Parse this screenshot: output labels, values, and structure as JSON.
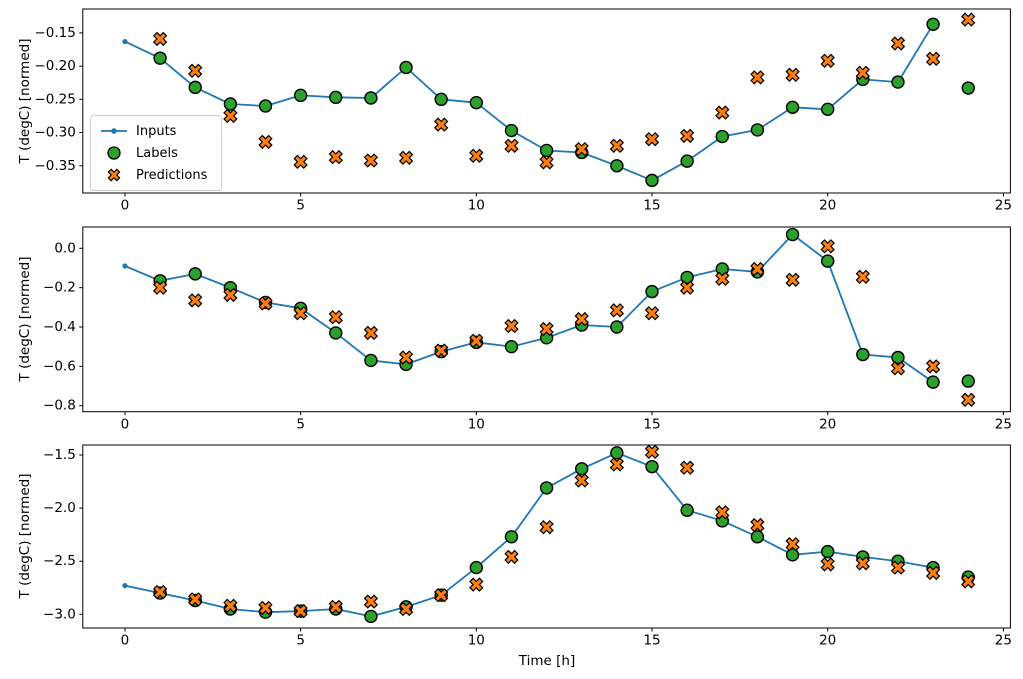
{
  "figure": {
    "background": "#ffffff"
  },
  "xlabel": "Time [h]",
  "legend": {
    "items": [
      "Inputs",
      "Labels",
      "Predictions"
    ],
    "position": "center-left-of-first-subplot"
  },
  "colors": {
    "inputs": "#1f77b4",
    "labels": "#2ca02c",
    "predictions": "#ff7f0e",
    "marker_edge": "#000000",
    "axes": "#000000",
    "legend_border": "#cccccc"
  },
  "chart_data": [
    {
      "type": "line+scatter",
      "ylabel": "T (degC) [normed]",
      "xlim": [
        -1.2,
        25.2
      ],
      "ylim": [
        -0.391,
        -0.114
      ],
      "xtick_values": [
        0,
        5,
        10,
        15,
        20,
        25
      ],
      "xtick_labels": [
        "0",
        "5",
        "10",
        "15",
        "20",
        "25"
      ],
      "ytick_values": [
        -0.15,
        -0.2,
        -0.25,
        -0.3,
        -0.35
      ],
      "ytick_labels": [
        "−0.15",
        "−0.20",
        "−0.25",
        "−0.30",
        "−0.35"
      ],
      "series": [
        {
          "name": "Inputs",
          "kind": "line-with-dots",
          "color": "#1f77b4",
          "x": [
            0,
            1,
            2,
            3,
            4,
            5,
            6,
            7,
            8,
            9,
            10,
            11,
            12,
            13,
            14,
            15,
            16,
            17,
            18,
            19,
            20,
            21,
            22,
            23
          ],
          "y": [
            -0.163,
            -0.188,
            -0.232,
            -0.257,
            -0.26,
            -0.244,
            -0.247,
            -0.248,
            -0.202,
            -0.25,
            -0.255,
            -0.297,
            -0.327,
            -0.33,
            -0.35,
            -0.372,
            -0.343,
            -0.306,
            -0.296,
            -0.262,
            -0.265,
            -0.22,
            -0.224,
            -0.137
          ]
        },
        {
          "name": "Labels",
          "kind": "scatter-circle",
          "color": "#2ca02c",
          "edge": "#000000",
          "x": [
            1,
            2,
            3,
            4,
            5,
            6,
            7,
            8,
            9,
            10,
            11,
            12,
            13,
            14,
            15,
            16,
            17,
            18,
            19,
            20,
            21,
            22,
            23,
            24
          ],
          "y": [
            -0.188,
            -0.232,
            -0.257,
            -0.26,
            -0.244,
            -0.247,
            -0.248,
            -0.202,
            -0.25,
            -0.255,
            -0.297,
            -0.327,
            -0.33,
            -0.35,
            -0.372,
            -0.343,
            -0.306,
            -0.296,
            -0.262,
            -0.265,
            -0.22,
            -0.224,
            -0.137,
            -0.233
          ]
        },
        {
          "name": "Predictions",
          "kind": "scatter-x",
          "color": "#ff7f0e",
          "edge": "#000000",
          "x": [
            1,
            2,
            3,
            4,
            5,
            6,
            7,
            8,
            9,
            10,
            11,
            12,
            13,
            14,
            15,
            16,
            17,
            18,
            19,
            20,
            21,
            22,
            23,
            24
          ],
          "y": [
            -0.159,
            -0.207,
            -0.275,
            -0.314,
            -0.344,
            -0.337,
            -0.342,
            -0.338,
            -0.288,
            -0.335,
            -0.32,
            -0.345,
            -0.325,
            -0.32,
            -0.31,
            -0.305,
            -0.27,
            -0.217,
            -0.213,
            -0.192,
            -0.21,
            -0.166,
            -0.189,
            -0.13
          ]
        }
      ]
    },
    {
      "type": "line+scatter",
      "ylabel": "T (degC) [normed]",
      "xlim": [
        -1.2,
        25.2
      ],
      "ylim": [
        -0.8305,
        0.1083
      ],
      "xtick_values": [
        0,
        5,
        10,
        15,
        20,
        25
      ],
      "xtick_labels": [
        "0",
        "5",
        "10",
        "15",
        "20",
        "25"
      ],
      "ytick_values": [
        0.0,
        -0.2,
        -0.4,
        -0.6,
        -0.8
      ],
      "ytick_labels": [
        "0.0",
        "−0.2",
        "−0.4",
        "−0.6",
        "−0.8"
      ],
      "series": [
        {
          "name": "Inputs",
          "kind": "line-with-dots",
          "color": "#1f77b4",
          "x": [
            0,
            1,
            2,
            3,
            4,
            5,
            6,
            7,
            8,
            9,
            10,
            11,
            12,
            13,
            14,
            15,
            16,
            17,
            18,
            19,
            20,
            21,
            22,
            23
          ],
          "y": [
            -0.09,
            -0.165,
            -0.13,
            -0.2,
            -0.275,
            -0.305,
            -0.43,
            -0.57,
            -0.59,
            -0.525,
            -0.478,
            -0.5,
            -0.455,
            -0.39,
            -0.4,
            -0.22,
            -0.148,
            -0.105,
            -0.12,
            0.07,
            -0.065,
            -0.54,
            -0.555,
            -0.68
          ]
        },
        {
          "name": "Labels",
          "kind": "scatter-circle",
          "color": "#2ca02c",
          "edge": "#000000",
          "x": [
            1,
            2,
            3,
            4,
            5,
            6,
            7,
            8,
            9,
            10,
            11,
            12,
            13,
            14,
            15,
            16,
            17,
            18,
            19,
            20,
            21,
            22,
            23,
            24
          ],
          "y": [
            -0.165,
            -0.13,
            -0.2,
            -0.275,
            -0.305,
            -0.43,
            -0.57,
            -0.59,
            -0.525,
            -0.478,
            -0.5,
            -0.455,
            -0.39,
            -0.4,
            -0.22,
            -0.148,
            -0.105,
            -0.12,
            0.07,
            -0.065,
            -0.54,
            -0.555,
            -0.68,
            -0.675
          ]
        },
        {
          "name": "Predictions",
          "kind": "scatter-x",
          "color": "#ff7f0e",
          "edge": "#000000",
          "x": [
            1,
            2,
            3,
            4,
            5,
            6,
            7,
            8,
            9,
            10,
            11,
            12,
            13,
            14,
            15,
            16,
            17,
            18,
            19,
            20,
            21,
            22,
            23,
            24
          ],
          "y": [
            -0.2,
            -0.265,
            -0.237,
            -0.28,
            -0.33,
            -0.35,
            -0.43,
            -0.555,
            -0.52,
            -0.47,
            -0.395,
            -0.41,
            -0.36,
            -0.315,
            -0.33,
            -0.2,
            -0.155,
            -0.105,
            -0.16,
            0.01,
            -0.145,
            -0.61,
            -0.6,
            -0.77
          ]
        }
      ]
    },
    {
      "type": "line+scatter",
      "ylabel": "T (degC) [normed]",
      "xlim": [
        -1.2,
        25.2
      ],
      "ylim": [
        -3.129,
        -1.406
      ],
      "xtick_values": [
        0,
        5,
        10,
        15,
        20,
        25
      ],
      "xtick_labels": [
        "0",
        "5",
        "10",
        "15",
        "20",
        "25"
      ],
      "ytick_values": [
        -1.5,
        -2.0,
        -2.5,
        -3.0
      ],
      "ytick_labels": [
        "−1.5",
        "−2.0",
        "−2.5",
        "−3.0"
      ],
      "series": [
        {
          "name": "Inputs",
          "kind": "line-with-dots",
          "color": "#1f77b4",
          "x": [
            0,
            1,
            2,
            3,
            4,
            5,
            6,
            7,
            8,
            9,
            10,
            11,
            12,
            13,
            14,
            15,
            16,
            17,
            18,
            19,
            20,
            21,
            22,
            23
          ],
          "y": [
            -2.73,
            -2.8,
            -2.87,
            -2.95,
            -2.98,
            -2.97,
            -2.95,
            -3.02,
            -2.93,
            -2.82,
            -2.56,
            -2.27,
            -1.81,
            -1.63,
            -1.48,
            -1.61,
            -2.02,
            -2.12,
            -2.27,
            -2.44,
            -2.41,
            -2.46,
            -2.5,
            -2.56
          ]
        },
        {
          "name": "Labels",
          "kind": "scatter-circle",
          "color": "#2ca02c",
          "edge": "#000000",
          "x": [
            1,
            2,
            3,
            4,
            5,
            6,
            7,
            8,
            9,
            10,
            11,
            12,
            13,
            14,
            15,
            16,
            17,
            18,
            19,
            20,
            21,
            22,
            23,
            24
          ],
          "y": [
            -2.8,
            -2.87,
            -2.95,
            -2.98,
            -2.97,
            -2.95,
            -3.02,
            -2.93,
            -2.82,
            -2.56,
            -2.27,
            -1.81,
            -1.63,
            -1.48,
            -1.61,
            -2.02,
            -2.12,
            -2.27,
            -2.44,
            -2.41,
            -2.46,
            -2.5,
            -2.56,
            -2.65
          ]
        },
        {
          "name": "Predictions",
          "kind": "scatter-x",
          "color": "#ff7f0e",
          "edge": "#000000",
          "x": [
            1,
            2,
            3,
            4,
            5,
            6,
            7,
            8,
            9,
            10,
            11,
            12,
            13,
            14,
            15,
            16,
            17,
            18,
            19,
            20,
            21,
            22,
            23,
            24
          ],
          "y": [
            -2.79,
            -2.86,
            -2.92,
            -2.94,
            -2.97,
            -2.93,
            -2.88,
            -2.95,
            -2.82,
            -2.72,
            -2.46,
            -2.18,
            -1.74,
            -1.59,
            -1.47,
            -1.62,
            -2.04,
            -2.16,
            -2.34,
            -2.53,
            -2.52,
            -2.56,
            -2.61,
            -2.69
          ]
        }
      ]
    }
  ]
}
